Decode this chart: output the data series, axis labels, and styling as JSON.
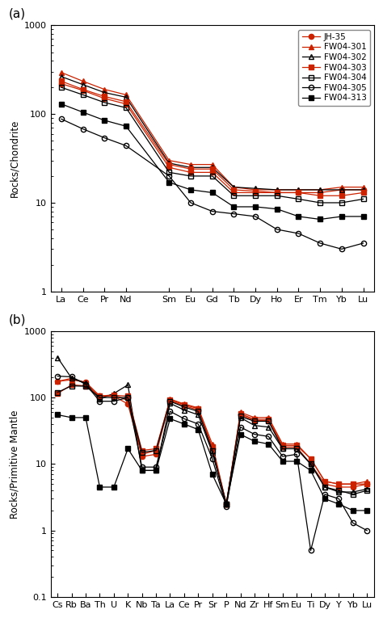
{
  "panel_a": {
    "title": "(a)",
    "ylabel": "Rocks/Chondrite",
    "xlabel_elements": [
      "La",
      "Ce",
      "Pr",
      "Nd",
      "",
      "Sm",
      "Eu",
      "Gd",
      "Tb",
      "Dy",
      "Ho",
      "Er",
      "Tm",
      "Yb",
      "Lu"
    ],
    "display_elements": [
      "La",
      "Ce",
      "Pr",
      "Nd",
      "Sm",
      "Eu",
      "Gd",
      "Tb",
      "Dy",
      "Ho",
      "Er",
      "Tm",
      "Yb",
      "Lu"
    ],
    "x_positions": [
      0,
      1,
      2,
      3,
      5,
      6,
      7,
      8,
      9,
      10,
      11,
      12,
      13,
      14
    ],
    "ylim": [
      1,
      1000
    ],
    "series": {
      "JH-35": {
        "color": "#cc2200",
        "marker": "o",
        "filled": true,
        "values": [
          220,
          185,
          150,
          130,
          25,
          22,
          22,
          13,
          13,
          13,
          13,
          13,
          14,
          14
        ]
      },
      "FW04-301": {
        "color": "#cc2200",
        "marker": "^",
        "filled": true,
        "values": [
          295,
          235,
          190,
          165,
          30,
          27,
          27,
          15,
          14,
          14,
          14,
          14,
          15,
          15
        ]
      },
      "FW04-302": {
        "color": "#000000",
        "marker": "^",
        "filled": false,
        "values": [
          265,
          215,
          175,
          155,
          28,
          25,
          25,
          15,
          14.5,
          14,
          14,
          14,
          14,
          14
        ]
      },
      "FW04-303": {
        "color": "#cc2200",
        "marker": "s",
        "filled": true,
        "values": [
          235,
          190,
          158,
          138,
          27,
          24,
          24,
          14,
          13.5,
          13,
          13,
          12,
          12,
          13
        ]
      },
      "FW04-304": {
        "color": "#000000",
        "marker": "s",
        "filled": false,
        "values": [
          200,
          165,
          135,
          118,
          22,
          20,
          20,
          12,
          12,
          12,
          11,
          10,
          10,
          11
        ]
      },
      "FW04-305": {
        "color": "#000000",
        "marker": "o",
        "filled": false,
        "values": [
          88,
          68,
          54,
          44,
          20,
          10,
          8,
          7.5,
          7,
          5,
          4.5,
          3.5,
          3,
          3.5
        ]
      },
      "FW04-313": {
        "color": "#000000",
        "marker": "s",
        "filled": true,
        "values": [
          130,
          105,
          85,
          73,
          17,
          14,
          13,
          9,
          9,
          8.5,
          7,
          6.5,
          7,
          7
        ]
      }
    }
  },
  "panel_b": {
    "title": "(b)",
    "ylabel": "Rocks/Primitive Mantle",
    "xlabel_elements": [
      "Cs",
      "Rb",
      "Ba",
      "Th",
      "U",
      "K",
      "Nb",
      "Ta",
      "La",
      "Ce",
      "Pr",
      "Sr",
      "P",
      "Nd",
      "Zr",
      "Hf",
      "Sm",
      "Eu",
      "Ti",
      "Dy",
      "Y",
      "Yb",
      "Lu"
    ],
    "ylim": [
      0.1,
      1000
    ],
    "series": {
      "JH-35": {
        "color": "#cc2200",
        "marker": "o",
        "filled": true,
        "values": [
          175,
          185,
          170,
          105,
          105,
          80,
          13,
          14,
          90,
          75,
          65,
          17,
          2.5,
          55,
          45,
          45,
          18,
          18,
          10,
          5,
          4.5,
          4.5,
          5
        ]
      },
      "FW04-301": {
        "color": "#cc2200",
        "marker": "^",
        "filled": true,
        "values": [
          175,
          195,
          168,
          105,
          110,
          90,
          14,
          16,
          95,
          80,
          70,
          20,
          2.5,
          60,
          50,
          50,
          20,
          20,
          12,
          5.5,
          5,
          5,
          5.5
        ]
      },
      "FW04-302": {
        "color": "#000000",
        "marker": "^",
        "filled": false,
        "values": [
          400,
          195,
          165,
          95,
          115,
          155,
          8,
          8,
          82,
          65,
          55,
          15,
          2.5,
          50,
          38,
          36,
          17,
          17,
          10,
          4.5,
          3.8,
          3.8,
          4.2
        ]
      },
      "FW04-303": {
        "color": "#cc2200",
        "marker": "s",
        "filled": true,
        "values": [
          115,
          155,
          150,
          105,
          108,
          105,
          16,
          17,
          93,
          78,
          68,
          18,
          2.5,
          57,
          47,
          47,
          19,
          19,
          12,
          5.5,
          5,
          5,
          5
        ]
      },
      "FW04-304": {
        "color": "#000000",
        "marker": "s",
        "filled": false,
        "values": [
          120,
          150,
          148,
          100,
          100,
          100,
          15,
          16,
          88,
          72,
          62,
          16,
          2.5,
          52,
          44,
          44,
          17,
          17,
          10,
          4.5,
          4,
          3.5,
          4
        ]
      },
      "FW04-305": {
        "color": "#000000",
        "marker": "o",
        "filled": false,
        "values": [
          210,
          205,
          158,
          88,
          88,
          100,
          9,
          9,
          62,
          48,
          40,
          12,
          2.3,
          36,
          28,
          26,
          13,
          14,
          0.5,
          3.5,
          3,
          1.3,
          1
        ]
      },
      "FW04-313": {
        "color": "#000000",
        "marker": "s",
        "filled": true,
        "values": [
          55,
          50,
          50,
          4.5,
          4.5,
          17,
          8,
          8,
          48,
          40,
          33,
          7,
          2.5,
          28,
          22,
          20,
          11,
          11,
          8,
          3,
          2.5,
          2,
          2
        ]
      }
    }
  },
  "legend_order": [
    "JH-35",
    "FW04-301",
    "FW04-302",
    "FW04-303",
    "FW04-304",
    "FW04-305",
    "FW04-313"
  ],
  "bg_color": "#ffffff",
  "linewidth": 0.9,
  "markersize": 4.5
}
